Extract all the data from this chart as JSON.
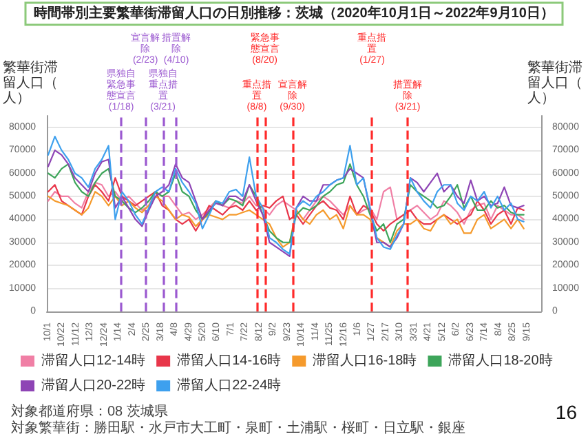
{
  "chart_data": {
    "type": "line",
    "title": "時間帯別主要繁華街滞留人口の日別推移：茨城（2020年10月1日～2022年9月10日）",
    "ylabel": "繁華街滞留人口（人）",
    "y2label": "繁華街滞留人口（人）",
    "x": [
      "2020-10-01",
      "2020-10-11",
      "2020-10-21",
      "2020-10-31",
      "2020-11-10",
      "2020-11-20",
      "2020-11-30",
      "2020-12-10",
      "2020-12-20",
      "2020-12-30",
      "2021-01-09",
      "2021-01-19",
      "2021-01-29",
      "2021-02-08",
      "2021-02-18",
      "2021-02-28",
      "2021-03-10",
      "2021-03-20",
      "2021-03-30",
      "2021-04-09",
      "2021-04-19",
      "2021-04-29",
      "2021-05-09",
      "2021-05-19",
      "2021-05-29",
      "2021-06-08",
      "2021-06-18",
      "2021-06-28",
      "2021-07-08",
      "2021-07-18",
      "2021-07-28",
      "2021-08-07",
      "2021-08-17",
      "2021-08-27",
      "2021-09-06",
      "2021-09-16",
      "2021-09-26",
      "2021-10-06",
      "2021-10-16",
      "2021-10-26",
      "2021-11-05",
      "2021-11-15",
      "2021-11-25",
      "2021-12-05",
      "2021-12-15",
      "2021-12-25",
      "2022-01-04",
      "2022-01-14",
      "2022-01-24",
      "2022-02-03",
      "2022-02-13",
      "2022-02-23",
      "2022-03-05",
      "2022-03-15",
      "2022-03-25",
      "2022-04-04",
      "2022-04-14",
      "2022-04-24",
      "2022-05-04",
      "2022-05-14",
      "2022-05-24",
      "2022-06-03",
      "2022-06-13",
      "2022-06-23",
      "2022-07-03",
      "2022-07-13",
      "2022-07-23",
      "2022-08-02",
      "2022-08-12",
      "2022-08-22",
      "2022-09-01",
      "2022-09-10"
    ],
    "series": [
      {
        "name": "滞留人口12-14時",
        "color": "#f07fa5",
        "values": [
          48000,
          52000,
          50000,
          50000,
          47000,
          45000,
          52000,
          56000,
          55000,
          50000,
          52000,
          48000,
          50000,
          47000,
          44000,
          46000,
          52000,
          50000,
          50000,
          46000,
          42000,
          43000,
          40000,
          42000,
          45000,
          48000,
          46000,
          45000,
          48000,
          47000,
          50000,
          46000,
          45000,
          42000,
          46000,
          48000,
          46000,
          44000,
          40000,
          44000,
          48000,
          50000,
          48000,
          45000,
          42000,
          46000,
          42000,
          44000,
          45000,
          40000,
          52000,
          54000,
          40000,
          42000,
          44000,
          46000,
          43000,
          40000,
          42000,
          48000,
          46000,
          43000,
          38000,
          44000,
          46000,
          47000,
          40000,
          46000,
          44000,
          42000,
          42000,
          40000
        ]
      },
      {
        "name": "滞留人口14-16時",
        "color": "#e8364a",
        "values": [
          52000,
          55000,
          48000,
          46000,
          44000,
          42000,
          50000,
          55000,
          52000,
          48000,
          58000,
          50000,
          48000,
          46000,
          48000,
          50000,
          52000,
          46000,
          44000,
          40000,
          38000,
          40000,
          35000,
          40000,
          46000,
          44000,
          42000,
          45000,
          46000,
          44000,
          48000,
          44000,
          46000,
          45000,
          48000,
          50000,
          40000,
          42000,
          38000,
          42000,
          46000,
          48000,
          45000,
          44000,
          40000,
          50000,
          42000,
          46000,
          44000,
          38000,
          35000,
          38000,
          40000,
          42000,
          44000,
          40000,
          38000,
          38000,
          40000,
          42000,
          40000,
          38000,
          40000,
          42000,
          48000,
          44000,
          38000,
          42000,
          44000,
          38000,
          45000,
          44000
        ]
      },
      {
        "name": "滞留人口16-18時",
        "color": "#f59a2c",
        "values": [
          50000,
          48000,
          47000,
          46000,
          44000,
          42000,
          45000,
          52000,
          50000,
          46000,
          50000,
          46000,
          48000,
          45000,
          43000,
          46000,
          50000,
          48000,
          44000,
          40000,
          42000,
          41000,
          37000,
          40000,
          42000,
          41000,
          40000,
          42000,
          42000,
          43000,
          44000,
          42000,
          40000,
          38000,
          32000,
          28000,
          30000,
          44000,
          40000,
          38000,
          42000,
          44000,
          40000,
          42000,
          36000,
          46000,
          42000,
          42000,
          40000,
          32000,
          30000,
          28000,
          35000,
          38000,
          38000,
          40000,
          36000,
          35000,
          40000,
          42000,
          38000,
          40000,
          34000,
          34000,
          40000,
          42000,
          36000,
          38000,
          40000,
          36000,
          40000,
          36000
        ]
      },
      {
        "name": "滞留人口18-20時",
        "color": "#3da55a",
        "values": [
          60000,
          58000,
          62000,
          64000,
          56000,
          52000,
          50000,
          56000,
          60000,
          62000,
          50000,
          48000,
          45000,
          43000,
          45000,
          48000,
          52000,
          50000,
          52000,
          60000,
          52000,
          50000,
          44000,
          40000,
          43000,
          48000,
          46000,
          49000,
          48000,
          46000,
          55000,
          50000,
          42000,
          35000,
          32000,
          30000,
          30000,
          42000,
          45000,
          44000,
          46000,
          50000,
          52000,
          55000,
          56000,
          64000,
          55000,
          50000,
          42000,
          35000,
          38000,
          30000,
          38000,
          40000,
          55000,
          52000,
          50000,
          48000,
          45000,
          46000,
          50000,
          55000,
          45000,
          50000,
          44000,
          44000,
          48000,
          45000,
          46000,
          43000,
          42000,
          42000
        ]
      },
      {
        "name": "滞留人口20-22時",
        "color": "#8e44b5",
        "values": [
          63000,
          70000,
          68000,
          64000,
          58000,
          55000,
          52000,
          60000,
          65000,
          66000,
          45000,
          50000,
          45000,
          40000,
          37000,
          44000,
          50000,
          52000,
          55000,
          64000,
          58000,
          56000,
          48000,
          40000,
          44000,
          47000,
          46000,
          50000,
          50000,
          48000,
          55000,
          48000,
          42000,
          30000,
          28000,
          26000,
          24000,
          45000,
          50000,
          48000,
          48000,
          55000,
          55000,
          57000,
          58000,
          62000,
          60000,
          58000,
          44000,
          30000,
          30000,
          28000,
          32000,
          38000,
          58000,
          56000,
          52000,
          56000,
          60000,
          52000,
          55000,
          50000,
          47000,
          57000,
          48000,
          50000,
          46000,
          47000,
          54000,
          46000,
          45000,
          46000
        ]
      },
      {
        "name": "滞留人口22-24時",
        "color": "#3ea0ee",
        "values": [
          68000,
          76000,
          70000,
          66000,
          60000,
          58000,
          54000,
          62000,
          66000,
          72000,
          40000,
          52000,
          48000,
          42000,
          38000,
          45000,
          52000,
          54000,
          52000,
          62000,
          56000,
          52000,
          47000,
          36000,
          42000,
          48000,
          47000,
          52000,
          53000,
          50000,
          67000,
          50000,
          45000,
          32000,
          30000,
          27000,
          25000,
          45000,
          48000,
          46000,
          50000,
          52000,
          55000,
          57000,
          58000,
          72000,
          55000,
          58000,
          45000,
          32000,
          28000,
          27000,
          33000,
          38000,
          58000,
          52000,
          48000,
          45000,
          52000,
          55000,
          55000,
          47000,
          44000,
          50000,
          48000,
          52000,
          45000,
          50000,
          44000,
          47000,
          40000,
          39000
        ]
      }
    ],
    "xlim": [
      "2020-09-29",
      "2022-10-06"
    ],
    "xticks": [
      {
        "value": "2020-10-01",
        "label": "10/1"
      },
      {
        "value": "2020-10-22",
        "label": "10/22"
      },
      {
        "value": "2020-11-12",
        "label": "11/12"
      },
      {
        "value": "2020-12-03",
        "label": "12/3"
      },
      {
        "value": "2020-12-24",
        "label": "12/24"
      },
      {
        "value": "2021-01-14",
        "label": "1/14"
      },
      {
        "value": "2021-02-04",
        "label": "2/4"
      },
      {
        "value": "2021-02-25",
        "label": "2/25"
      },
      {
        "value": "2021-03-18",
        "label": "3/18"
      },
      {
        "value": "2021-04-08",
        "label": "4/8"
      },
      {
        "value": "2021-04-29",
        "label": "4/29"
      },
      {
        "value": "2021-05-20",
        "label": "5/20"
      },
      {
        "value": "2021-06-10",
        "label": "6/10"
      },
      {
        "value": "2021-07-01",
        "label": "7/1"
      },
      {
        "value": "2021-07-22",
        "label": "7/22"
      },
      {
        "value": "2021-08-12",
        "label": "8/12"
      },
      {
        "value": "2021-09-02",
        "label": "9/2"
      },
      {
        "value": "2021-09-23",
        "label": "9/23"
      },
      {
        "value": "2021-10-14",
        "label": "10/14"
      },
      {
        "value": "2021-11-04",
        "label": "11/4"
      },
      {
        "value": "2021-11-25",
        "label": "11/25"
      },
      {
        "value": "2021-12-16",
        "label": "12/16"
      },
      {
        "value": "2022-01-06",
        "label": "1/6"
      },
      {
        "value": "2022-01-27",
        "label": "1/27"
      },
      {
        "value": "2022-02-17",
        "label": "2/17"
      },
      {
        "value": "2022-03-10",
        "label": "3/10"
      },
      {
        "value": "2022-03-31",
        "label": "3/31"
      },
      {
        "value": "2022-04-21",
        "label": "4/21"
      },
      {
        "value": "2022-05-12",
        "label": "5/12"
      },
      {
        "value": "2022-06-02",
        "label": "6/2"
      },
      {
        "value": "2022-06-23",
        "label": "6/23"
      },
      {
        "value": "2022-07-14",
        "label": "7/14"
      },
      {
        "value": "2022-08-04",
        "label": "8/4"
      },
      {
        "value": "2022-08-25",
        "label": "8/25"
      },
      {
        "value": "2022-09-15",
        "label": "9/15"
      }
    ],
    "ylim": [
      0,
      85000
    ],
    "yticks": [
      0,
      10000,
      20000,
      30000,
      40000,
      50000,
      60000,
      70000,
      80000
    ],
    "y2lim": [
      0,
      85000
    ],
    "y2ticks": [
      0,
      10000,
      20000,
      30000,
      40000,
      50000,
      60000,
      70000,
      80000
    ],
    "ref_lines": [
      {
        "axis": "x",
        "value": "2021-01-18",
        "label": "県独自緊急事態宣言(1/18)",
        "color": "#9b59d0",
        "line_style": "dashed"
      },
      {
        "axis": "x",
        "value": "2021-02-23",
        "label": "宣言解除(2/23)",
        "color": "#9b59d0",
        "line_style": "dashed"
      },
      {
        "axis": "x",
        "value": "2021-03-21",
        "label": "県独自重点措置(3/21)",
        "color": "#9b59d0",
        "line_style": "dashed"
      },
      {
        "axis": "x",
        "value": "2021-04-10",
        "label": "措置解除(4/10)",
        "color": "#9b59d0",
        "line_style": "dashed"
      },
      {
        "axis": "x",
        "value": "2021-08-08",
        "label": "重点措置(8/8)",
        "color": "#ff2a2a",
        "line_style": "dashed"
      },
      {
        "axis": "x",
        "value": "2021-08-20",
        "label": "緊急事態宣言(8/20)",
        "color": "#ff2a2a",
        "line_style": "dashed"
      },
      {
        "axis": "x",
        "value": "2021-09-30",
        "label": "宣言解除(9/30)",
        "color": "#ff2a2a",
        "line_style": "dashed"
      },
      {
        "axis": "x",
        "value": "2022-01-27",
        "label": "重点措置(1/27)",
        "color": "#ff2a2a",
        "line_style": "dashed"
      },
      {
        "axis": "x",
        "value": "2022-03-21",
        "label": "措置解除(3/21)",
        "color": "#ff2a2a",
        "line_style": "dashed"
      }
    ],
    "annotations": [
      "対象都道府県：08 茨城県",
      "対象繁華街：勝田駅・水戸市大工町・泉町・土浦駅・桜町・日立駅・銀座",
      "16"
    ],
    "grid": "y",
    "legend": "bottom",
    "marker": "none",
    "line_style": "solid"
  }
}
